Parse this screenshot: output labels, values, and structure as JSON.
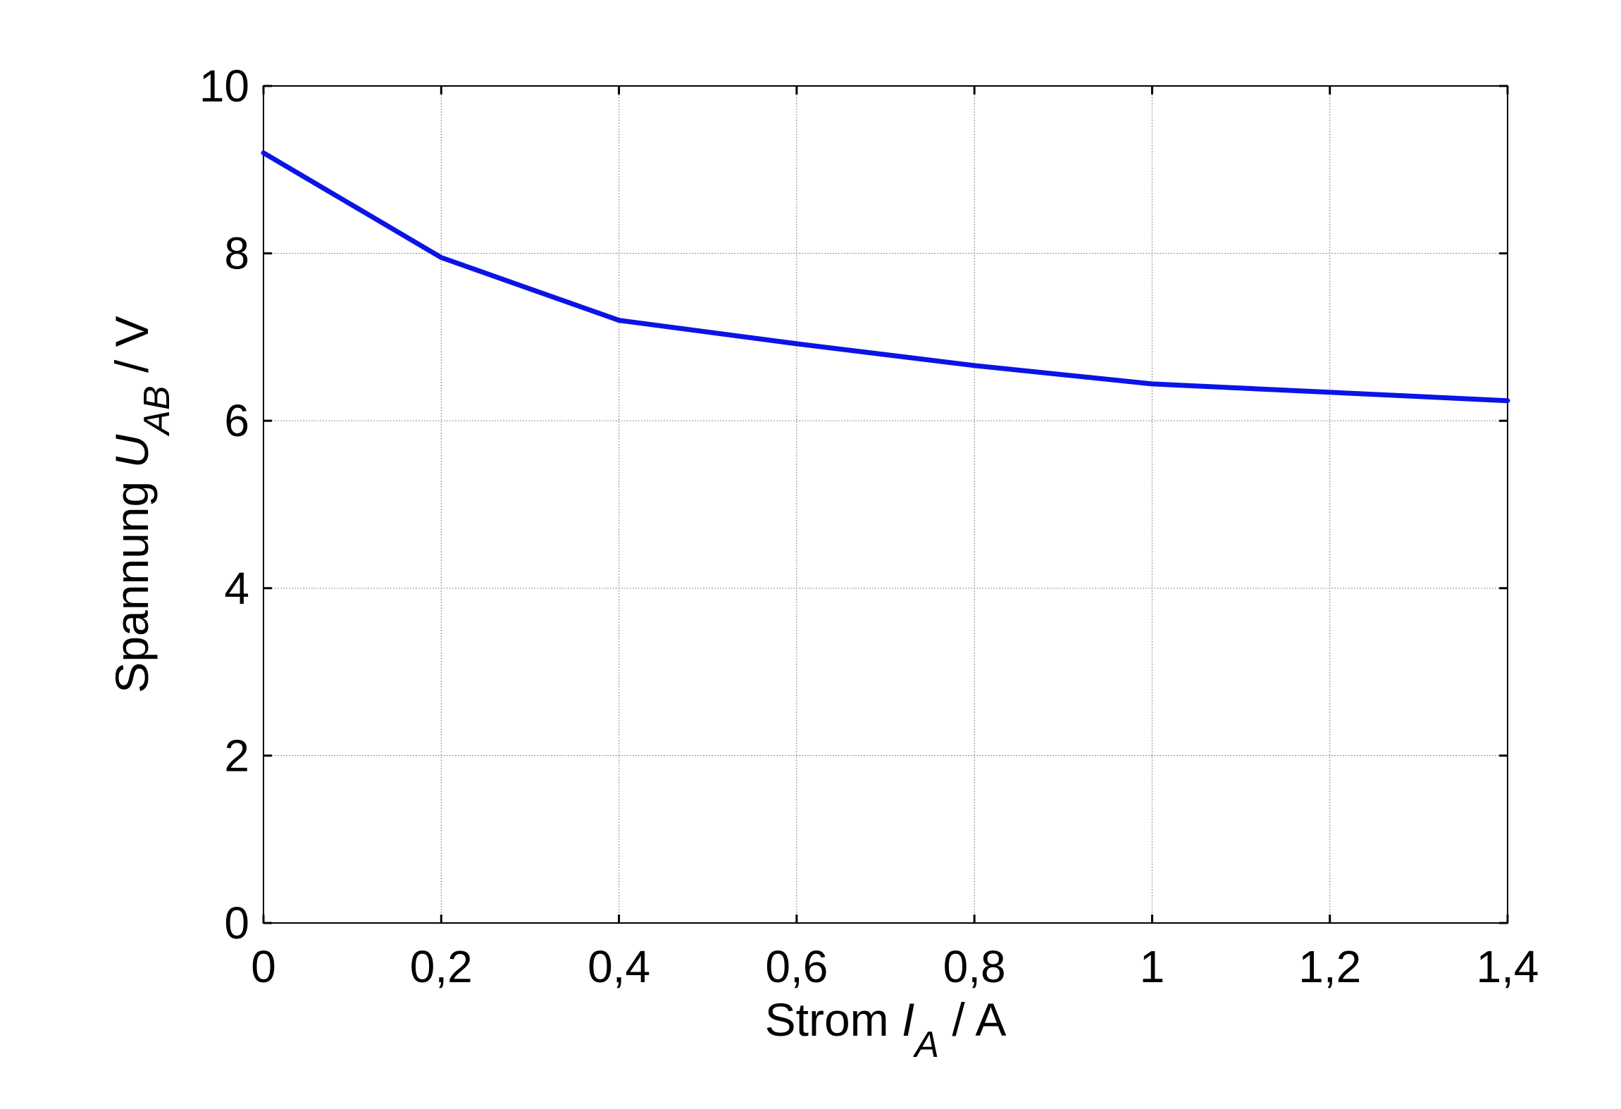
{
  "chart_data": {
    "type": "line",
    "xlabel": {
      "prefix": "Strom ",
      "symbol": "I",
      "subscript": "A",
      "suffix": " / A"
    },
    "ylabel": {
      "prefix": "Spannung  ",
      "symbol": "U",
      "subscript": "AB",
      "suffix": " / V"
    },
    "xlim": [
      0,
      1.4
    ],
    "ylim": [
      0,
      10
    ],
    "xticks": [
      0,
      0.2,
      0.4,
      0.6,
      0.8,
      1,
      1.2,
      1.4
    ],
    "xtick_labels": [
      "0",
      "0,2",
      "0,4",
      "0,6",
      "0,8",
      "1",
      "1,2",
      "1,4"
    ],
    "yticks": [
      0,
      2,
      4,
      6,
      8,
      10
    ],
    "ytick_labels": [
      "0",
      "2",
      "4",
      "6",
      "8",
      "10"
    ],
    "grid": true,
    "series": [
      {
        "color": "#0a14e6",
        "x": [
          0,
          0.2,
          0.4,
          0.6,
          0.8,
          1.0,
          1.2,
          1.4
        ],
        "y": [
          9.2,
          7.95,
          7.2,
          6.92,
          6.66,
          6.44,
          6.34,
          6.24
        ]
      }
    ]
  }
}
